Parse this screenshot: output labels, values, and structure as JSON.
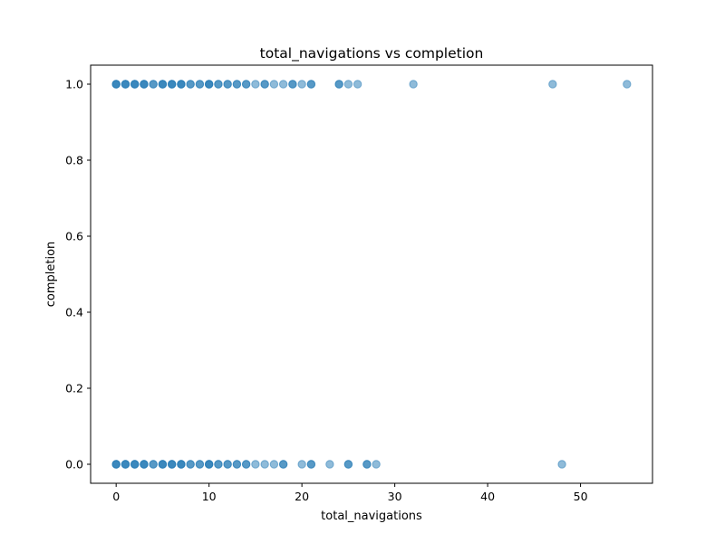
{
  "chart_data": {
    "type": "scatter",
    "title": "total_navigations vs completion",
    "xlabel": "total_navigations",
    "ylabel": "completion",
    "xlim": [
      -2.75,
      57.75
    ],
    "ylim": [
      -0.05,
      1.05
    ],
    "xticks": [
      0,
      10,
      20,
      30,
      40,
      50
    ],
    "yticks": [
      0.0,
      0.2,
      0.4,
      0.6,
      0.8,
      1.0
    ],
    "xtick_labels": [
      "0",
      "10",
      "20",
      "30",
      "40",
      "50"
    ],
    "ytick_labels": [
      "0.0",
      "0.2",
      "0.4",
      "0.6",
      "0.8",
      "1.0"
    ],
    "grid": false,
    "marker_color": "#1f77b4",
    "marker_alpha": 0.5,
    "series": [
      {
        "points": [
          [
            0,
            1
          ],
          [
            0,
            1
          ],
          [
            0,
            1
          ],
          [
            1,
            1
          ],
          [
            1,
            1
          ],
          [
            1,
            1
          ],
          [
            2,
            1
          ],
          [
            2,
            1
          ],
          [
            2,
            1
          ],
          [
            3,
            1
          ],
          [
            3,
            1
          ],
          [
            3,
            1
          ],
          [
            4,
            1
          ],
          [
            4,
            1
          ],
          [
            5,
            1
          ],
          [
            5,
            1
          ],
          [
            5,
            1
          ],
          [
            6,
            1
          ],
          [
            6,
            1
          ],
          [
            6,
            1
          ],
          [
            7,
            1
          ],
          [
            7,
            1
          ],
          [
            7,
            1
          ],
          [
            8,
            1
          ],
          [
            8,
            1
          ],
          [
            9,
            1
          ],
          [
            9,
            1
          ],
          [
            10,
            1
          ],
          [
            10,
            1
          ],
          [
            10,
            1
          ],
          [
            11,
            1
          ],
          [
            11,
            1
          ],
          [
            12,
            1
          ],
          [
            12,
            1
          ],
          [
            13,
            1
          ],
          [
            13,
            1
          ],
          [
            14,
            1
          ],
          [
            14,
            1
          ],
          [
            15,
            1
          ],
          [
            16,
            1
          ],
          [
            16,
            1
          ],
          [
            17,
            1
          ],
          [
            18,
            1
          ],
          [
            19,
            1
          ],
          [
            19,
            1
          ],
          [
            20,
            1
          ],
          [
            21,
            1
          ],
          [
            21,
            1
          ],
          [
            24,
            1
          ],
          [
            24,
            1
          ],
          [
            25,
            1
          ],
          [
            26,
            1
          ],
          [
            32,
            1
          ],
          [
            47,
            1
          ],
          [
            55,
            1
          ],
          [
            0,
            0
          ],
          [
            0,
            0
          ],
          [
            0,
            0
          ],
          [
            1,
            0
          ],
          [
            1,
            0
          ],
          [
            1,
            0
          ],
          [
            2,
            0
          ],
          [
            2,
            0
          ],
          [
            2,
            0
          ],
          [
            3,
            0
          ],
          [
            3,
            0
          ],
          [
            3,
            0
          ],
          [
            4,
            0
          ],
          [
            4,
            0
          ],
          [
            5,
            0
          ],
          [
            5,
            0
          ],
          [
            5,
            0
          ],
          [
            6,
            0
          ],
          [
            6,
            0
          ],
          [
            6,
            0
          ],
          [
            7,
            0
          ],
          [
            7,
            0
          ],
          [
            7,
            0
          ],
          [
            8,
            0
          ],
          [
            8,
            0
          ],
          [
            9,
            0
          ],
          [
            9,
            0
          ],
          [
            10,
            0
          ],
          [
            10,
            0
          ],
          [
            10,
            0
          ],
          [
            11,
            0
          ],
          [
            11,
            0
          ],
          [
            12,
            0
          ],
          [
            12,
            0
          ],
          [
            13,
            0
          ],
          [
            13,
            0
          ],
          [
            14,
            0
          ],
          [
            14,
            0
          ],
          [
            15,
            0
          ],
          [
            16,
            0
          ],
          [
            17,
            0
          ],
          [
            18,
            0
          ],
          [
            18,
            0
          ],
          [
            20,
            0
          ],
          [
            21,
            0
          ],
          [
            21,
            0
          ],
          [
            23,
            0
          ],
          [
            25,
            0
          ],
          [
            25,
            0
          ],
          [
            27,
            0
          ],
          [
            27,
            0
          ],
          [
            28,
            0
          ],
          [
            48,
            0
          ]
        ]
      }
    ]
  }
}
